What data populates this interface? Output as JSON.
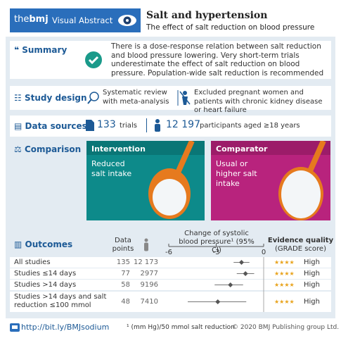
{
  "header": {
    "brand_prefix": "the",
    "brand": "bmj",
    "label": "Visual Abstract",
    "title": "Salt and hypertension",
    "subtitle": "The effect of salt reduction on blood pressure"
  },
  "summary": {
    "heading": "Summary",
    "text": "There is a dose-response relation between salt reduction and blood pressure lowering. Very short-term trials underestimate the effect of salt reduction on blood pressure. Population-wide salt reduction is recommended"
  },
  "study_design": {
    "heading": "Study design",
    "items": [
      "Systematic review with meta-analysis",
      "Excluded pregnant women and patients with chronic kidney disease or heart failure"
    ]
  },
  "data_sources": {
    "heading": "Data sources",
    "trials": "133",
    "trials_label": "trials",
    "participants": "12 197",
    "participants_label": "participants aged ≥18 years"
  },
  "comparison": {
    "heading": "Comparison",
    "intervention": {
      "title": "Intervention",
      "text": "Reduced salt intake"
    },
    "comparator": {
      "title": "Comparator",
      "text": "Usual or higher salt intake"
    }
  },
  "outcomes": {
    "heading": "Outcomes",
    "col_points": "Data points",
    "col_change": "Change of systolic blood pressure¹ (95% CI)",
    "col_evidence": "Evidence quality",
    "col_grade": "(GRADE score)",
    "xlim": [
      -6,
      0
    ],
    "xticks": [
      -6,
      -3,
      0
    ],
    "rows": [
      {
        "label": "All studies",
        "data_points": "135",
        "participants": "12 173",
        "estimate": -1.4,
        "ci_low": -1.9,
        "ci_high": -0.9,
        "stars": "★★★★",
        "quality": "High"
      },
      {
        "label": "Studies ≤14 days",
        "data_points": "77",
        "participants": "2977",
        "estimate": -1.15,
        "ci_low": -1.7,
        "ci_high": -0.6,
        "stars": "★★★★",
        "quality": "High"
      },
      {
        "label": "Studies >14 days",
        "data_points": "58",
        "participants": "9196",
        "estimate": -2.1,
        "ci_low": -3.1,
        "ci_high": -1.3,
        "stars": "★★★★",
        "quality": "High"
      },
      {
        "label": "Studies >14 days and salt reduction ≤100 mmol",
        "data_points": "48",
        "participants": "7410",
        "estimate": -2.9,
        "ci_low": -4.8,
        "ci_high": -1.1,
        "stars": "★★★★",
        "quality": "High"
      }
    ]
  },
  "footer": {
    "link": "http://bit.ly/BMJsodium",
    "note": "¹ (mm Hg)/50 mmol salt reduction",
    "copyright": "© 2020 BMJ Publishing group Ltd."
  }
}
